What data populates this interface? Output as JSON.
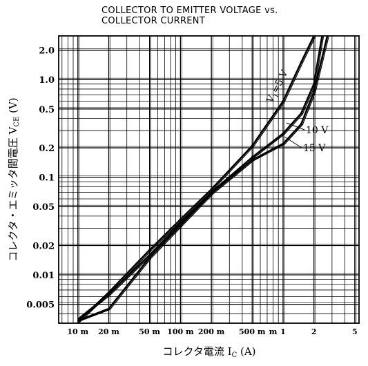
{
  "chart_data": {
    "type": "line",
    "title": [
      "COLLECTOR TO EMITTER VOLTAGE vs.",
      "COLLECTOR CURRENT"
    ],
    "xlabel": "コレクタ電流 I_C (A)",
    "ylabel": "コレクタ・エミッタ間電圧 V_CE (V)",
    "x_scale": "log",
    "y_scale": "log",
    "xlim": [
      0.0065,
      5.5
    ],
    "ylim": [
      0.0032,
      2.8
    ],
    "x_ticks": [
      {
        "value": 0.01,
        "label": "10 m"
      },
      {
        "value": 0.02,
        "label": "20 m"
      },
      {
        "value": 0.05,
        "label": "50 m"
      },
      {
        "value": 0.1,
        "label": "100 m"
      },
      {
        "value": 0.2,
        "label": "200 m"
      },
      {
        "value": 0.5,
        "label": "500 m"
      },
      {
        "value": 0.8,
        "label": "m"
      },
      {
        "value": 1,
        "label": "1"
      },
      {
        "value": 2,
        "label": "2"
      },
      {
        "value": 5,
        "label": "5"
      }
    ],
    "y_ticks": [
      {
        "value": 2.0,
        "label": "2.0"
      },
      {
        "value": 1.0,
        "label": "1.0"
      },
      {
        "value": 0.5,
        "label": "0.5"
      },
      {
        "value": 0.2,
        "label": "0.2"
      },
      {
        "value": 0.1,
        "label": "0.1"
      },
      {
        "value": 0.05,
        "label": "0.05"
      },
      {
        "value": 0.02,
        "label": "0.02"
      },
      {
        "value": 0.01,
        "label": "0.01"
      },
      {
        "value": 0.005,
        "label": "0.005"
      }
    ],
    "grid": true,
    "series": [
      {
        "name": "V1=5 V",
        "x": [
          0.01,
          0.02,
          0.05,
          0.1,
          0.2,
          0.5,
          1.0,
          1.5,
          2.0
        ],
        "y": [
          0.0033,
          0.0066,
          0.018,
          0.037,
          0.075,
          0.21,
          0.6,
          1.5,
          2.8
        ]
      },
      {
        "name": "10 V",
        "x": [
          0.01,
          0.02,
          0.05,
          0.1,
          0.2,
          0.5,
          1.0,
          1.5,
          2.0,
          2.4
        ],
        "y": [
          0.0035,
          0.0063,
          0.016,
          0.034,
          0.07,
          0.16,
          0.28,
          0.45,
          0.9,
          2.8
        ]
      },
      {
        "name": "15 V",
        "x": [
          0.01,
          0.02,
          0.05,
          0.1,
          0.2,
          0.5,
          1.0,
          1.5,
          2.0,
          2.7
        ],
        "y": [
          0.0034,
          0.0045,
          0.015,
          0.032,
          0.068,
          0.15,
          0.22,
          0.35,
          0.75,
          2.8
        ]
      }
    ],
    "annotations": [
      {
        "text": "V",
        "sub": "1",
        "after": "=5 V",
        "target_series": "V1=5 V"
      },
      {
        "text": "10 V",
        "target_series": "10 V"
      },
      {
        "text": "15 V",
        "target_series": "15 V"
      }
    ]
  }
}
